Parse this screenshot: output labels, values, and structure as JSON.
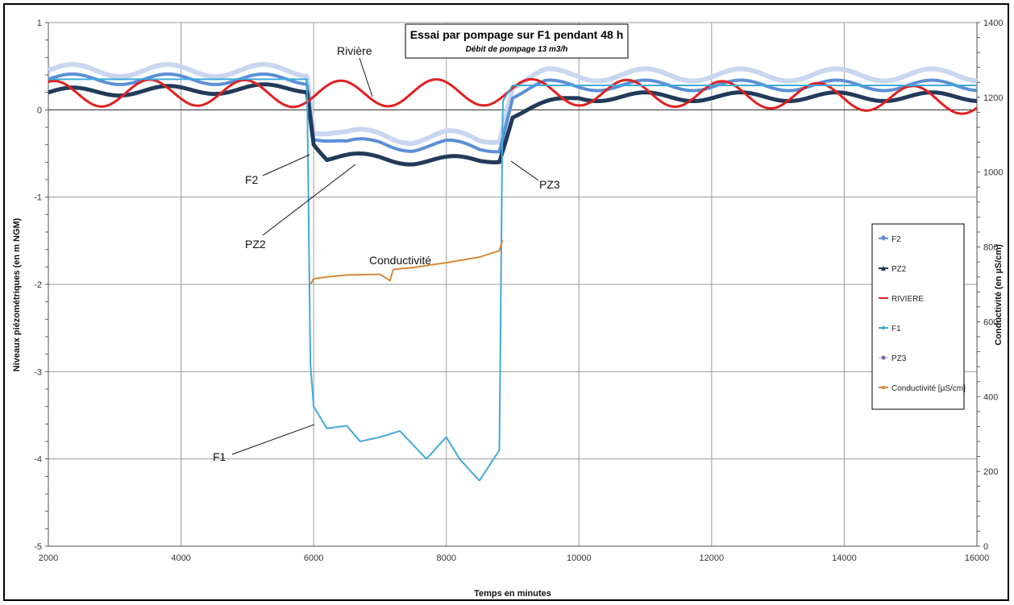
{
  "chart_data": {
    "type": "line",
    "title": "Essai par pompage sur F1 pendant 48 h",
    "subtitle": "Débit de pompage 13 m3/h",
    "xlabel": "Temps en minutes",
    "ylabel": "Niveaux piézométriques (en m  NGM)",
    "y2label": "Conductivité (en µS/cm)",
    "xlim": [
      2000,
      16000
    ],
    "ylim": [
      -5,
      1
    ],
    "y2lim": [
      0,
      1400
    ],
    "x_ticks": [
      "2000",
      "4000",
      "6000",
      "8000",
      "10000",
      "12000",
      "14000",
      "16000"
    ],
    "y_ticks": [
      "1",
      "0",
      "-1",
      "-2",
      "-3",
      "-4",
      "-5"
    ],
    "y2_ticks": [
      "1400",
      "1200",
      "1000",
      "800",
      "600",
      "400",
      "200",
      "0"
    ],
    "grid": true,
    "legend_position": "right",
    "legend": [
      "F2",
      "PZ2",
      "RIVIERE",
      "F1",
      "PZ3",
      "Conductivité [µS/cm]"
    ],
    "annotations": {
      "riviere": "Rivière",
      "f2": "F2",
      "pz2": "PZ2",
      "pz3": "PZ3",
      "f1": "F1",
      "conductivite": "Conductivité"
    },
    "series": [
      {
        "name": "F2",
        "color": "#5b8fd6",
        "axis": "left",
        "x": [
          2000,
          5900,
          6000,
          6500,
          7000,
          7500,
          8000,
          8500,
          8800,
          9000,
          9500,
          16000
        ],
        "y": [
          0.35,
          0.35,
          -0.28,
          -0.4,
          -0.38,
          -0.42,
          -0.4,
          -0.45,
          -0.42,
          0.18,
          0.28,
          0.28
        ]
      },
      {
        "name": "PZ2",
        "color": "#223a5a",
        "axis": "left",
        "x": [
          2000,
          5900,
          6000,
          6200,
          7000,
          7500,
          8000,
          8500,
          8800,
          9000,
          10000,
          16000
        ],
        "y": [
          0.2,
          0.25,
          -0.35,
          -0.55,
          -0.55,
          -0.58,
          -0.58,
          -0.58,
          -0.55,
          -0.05,
          0.15,
          0.15
        ]
      },
      {
        "name": "RIVIERE",
        "color": "#e02020",
        "axis": "left",
        "x": [
          2000,
          4000,
          6000,
          8000,
          10000,
          12000,
          14000,
          16000
        ],
        "y": [
          0.18,
          0.2,
          0.18,
          0.2,
          0.2,
          0.18,
          0.15,
          0.1
        ]
      },
      {
        "name": "F1",
        "color": "#3fa9dc",
        "axis": "left",
        "x": [
          2000,
          5900,
          5950,
          6000,
          6200,
          6500,
          6700,
          7000,
          7300,
          7700,
          8000,
          8200,
          8500,
          8800,
          8850,
          9000,
          16000
        ],
        "y": [
          0.35,
          0.35,
          -2.9,
          -3.4,
          -3.65,
          -3.62,
          -3.8,
          -3.75,
          -3.68,
          -4.0,
          -3.75,
          -4.0,
          -4.25,
          -3.9,
          0.1,
          0.28,
          0.28
        ]
      },
      {
        "name": "PZ3",
        "color": "#c8d6ef",
        "axis": "left",
        "x": [
          2000,
          5900,
          6000,
          6500,
          7000,
          7500,
          8000,
          8500,
          8800,
          9000,
          9500,
          16000
        ],
        "y": [
          0.45,
          0.45,
          -0.2,
          -0.3,
          -0.28,
          -0.32,
          -0.3,
          -0.35,
          -0.3,
          0.3,
          0.4,
          0.4
        ]
      },
      {
        "name": "Conductivité [µS/cm]",
        "color": "#d88838",
        "axis": "right",
        "x": [
          5950,
          6000,
          6200,
          6500,
          7000,
          7150,
          7200,
          7500,
          8000,
          8500,
          8800,
          8850
        ],
        "y": [
          700,
          715,
          720,
          725,
          727,
          710,
          740,
          745,
          758,
          773,
          790,
          820
        ]
      }
    ]
  }
}
